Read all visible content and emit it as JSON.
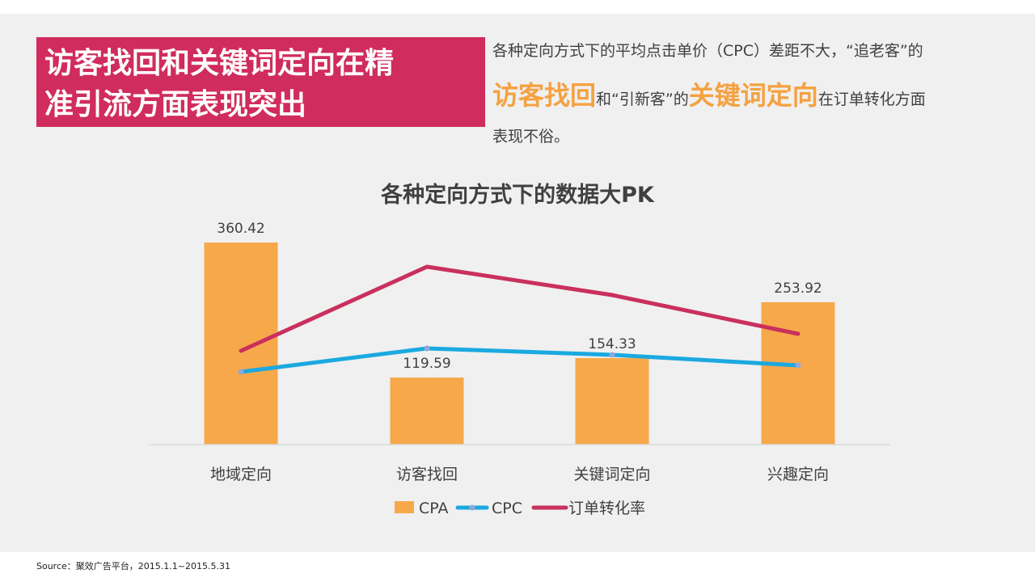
{
  "slide": {
    "title_lines": [
      "访客找回和关键词定向在精",
      "准引流方面表现突出"
    ],
    "description": {
      "line1": "各种定向方式下的平均点击单价（CPC）差距不大，“追老客”的",
      "line2": {
        "highlight1": "访客找回",
        "text1": "和“引新客”的",
        "highlight2": "关键词定向",
        "text2": "在订单转化方面"
      },
      "line3": "表现不俗。"
    },
    "source": "Source：聚效广告平台，2015.1.1~2015.5.31"
  },
  "colors": {
    "title_bg": "#d02c5e",
    "highlight": "#f5a141",
    "cpa": "#f7a84a",
    "cpc": "#1ba9e0",
    "conversion": "#c9305e",
    "background": "#f0f0f0"
  },
  "chart_data": {
    "type": "bar",
    "title": "各种定向方式下的数据大PK",
    "categories": [
      "地域定向",
      "访客找回",
      "关键词定向",
      "兴趣定向"
    ],
    "series": [
      {
        "name": "CPA",
        "type": "bar",
        "values": [
          360.42,
          119.59,
          154.33,
          253.92
        ],
        "labels": [
          "360.42",
          "119.59",
          "154.33",
          "253.92"
        ]
      },
      {
        "name": "CPC",
        "type": "line",
        "values": [
          0.72,
          0.95,
          0.89,
          0.78
        ]
      },
      {
        "name": "订单转化率",
        "type": "line",
        "values": [
          0.94,
          1.97,
          1.61,
          1.1
        ]
      }
    ],
    "ylim": [
      0,
      400
    ],
    "secondary_ylim": [
      0,
      3
    ],
    "grid": false,
    "legend": "bottom"
  }
}
